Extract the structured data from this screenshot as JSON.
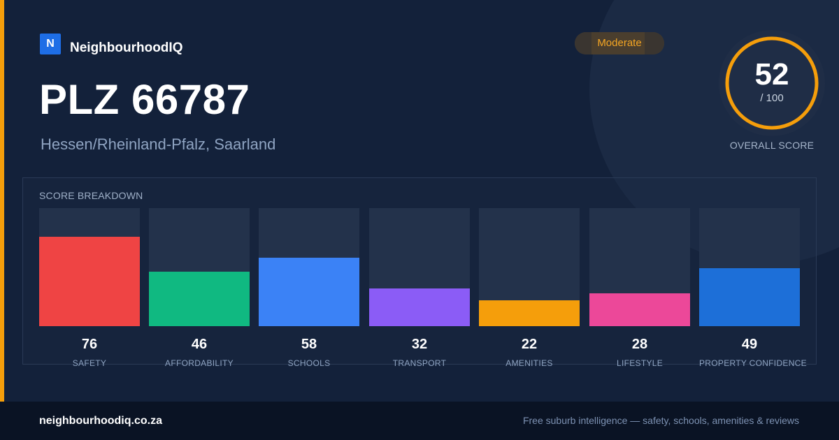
{
  "brand": {
    "mark": "N",
    "name": "NeighbourhoodIQ",
    "mark_color": "#1e6ee6"
  },
  "header": {
    "title": "PLZ 66787",
    "subtitle": "Hessen/Rheinland-Pfalz, Saarland",
    "badge": "Moderate",
    "badge_color": "#f5a623"
  },
  "overall": {
    "score": "52",
    "max": "/ 100",
    "label": "OVERALL SCORE",
    "score_value": 52,
    "max_value": 100,
    "ring_color": "#f59e0b"
  },
  "breakdown": {
    "title": "SCORE BREAKDOWN",
    "items": [
      {
        "label": "SAFETY",
        "value": "76",
        "score": 76,
        "color": "#ef4444"
      },
      {
        "label": "AFFORDABILITY",
        "value": "46",
        "score": 46,
        "color": "#10b981"
      },
      {
        "label": "SCHOOLS",
        "value": "58",
        "score": 58,
        "color": "#3b82f6"
      },
      {
        "label": "TRANSPORT",
        "value": "32",
        "score": 32,
        "color": "#8b5cf6"
      },
      {
        "label": "AMENITIES",
        "value": "22",
        "score": 22,
        "color": "#f59e0b"
      },
      {
        "label": "LIFESTYLE",
        "value": "28",
        "score": 28,
        "color": "#ec4899"
      },
      {
        "label": "PROPERTY CONFIDENCE",
        "value": "49",
        "score": 49,
        "color": "#1d6fd8"
      }
    ]
  },
  "footer": {
    "domain": "neighbourhoodiq.co.za",
    "tagline": "Free suburb intelligence — safety, schools, amenities & reviews"
  },
  "colors": {
    "accent": "#f59e0b",
    "background": "#13213a"
  }
}
